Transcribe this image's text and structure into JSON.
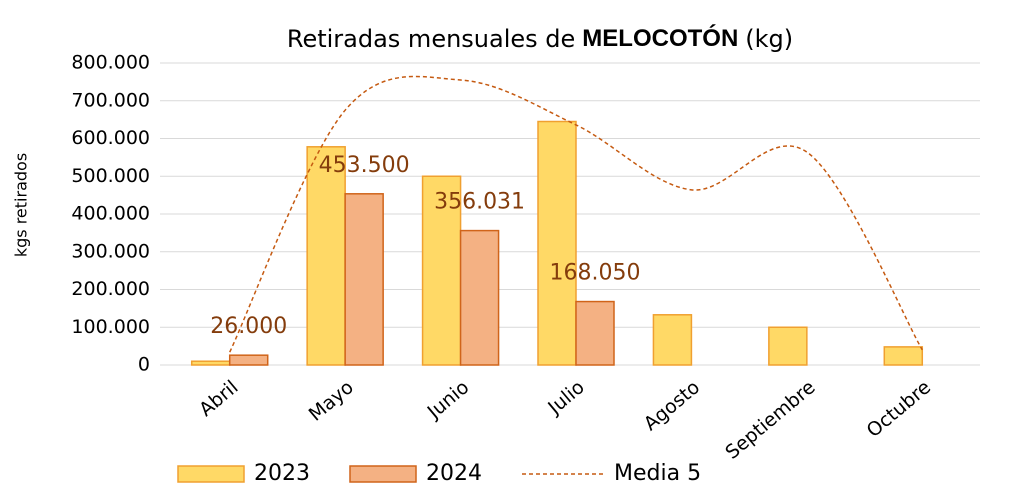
{
  "chart_data": {
    "type": "bar",
    "title": [
      "Retiradas mensuales de",
      "MELOCOTÓN",
      "(kg)"
    ],
    "y_label": "kgs retirados",
    "categories": [
      "Abril",
      "Mayo",
      "Junio",
      "Julio",
      "Agosto",
      "Septiembre",
      "Octubre"
    ],
    "series": [
      {
        "name": "2023",
        "color": "#ffd966",
        "stroke": "#f0a030",
        "values": [
          10000,
          578000,
          500000,
          645000,
          133000,
          100000,
          48000
        ]
      },
      {
        "name": "2024",
        "color": "#f4b183",
        "stroke": "#d0641a",
        "values": [
          26000,
          453500,
          356031,
          168050,
          null,
          null,
          null
        ],
        "value_labels": [
          "26.000",
          "453.500",
          "356.031",
          "168.050",
          null,
          null,
          null
        ]
      },
      {
        "name": "Media 5",
        "type": "line",
        "color": "#c55a11",
        "dashed": true,
        "values": [
          34000,
          675000,
          755000,
          636000,
          464000,
          564000,
          40000
        ]
      }
    ],
    "ylim": [
      0,
      800000
    ],
    "yticks": [
      0,
      {
        "value": 100000,
        "label": "100.000"
      },
      {
        "value": 200000,
        "label": "200.000"
      },
      {
        "value": 300000,
        "label": "300.000"
      },
      {
        "value": 400000,
        "label": "400.000"
      },
      {
        "value": 500000,
        "label": "500.000"
      },
      {
        "value": 600000,
        "label": "600.000"
      },
      {
        "value": 700000,
        "label": "700.000"
      },
      {
        "value": 800000,
        "label": "800.000"
      }
    ],
    "grid": true,
    "legend": "bottom"
  }
}
